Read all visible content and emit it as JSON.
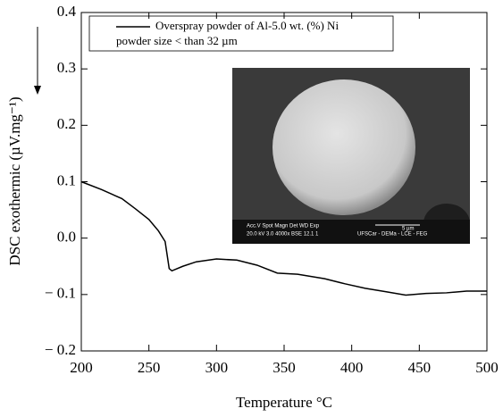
{
  "chart_data": {
    "type": "line",
    "xlabel": "Temperature °C",
    "ylabel": "DSC exothermic (µV.mg⁻¹)",
    "x": [
      200,
      215,
      230,
      240,
      250,
      257,
      262,
      265,
      267,
      275,
      285,
      300,
      315,
      330,
      345,
      360,
      380,
      395,
      410,
      425,
      440,
      455,
      470,
      485,
      500
    ],
    "series": [
      {
        "name": "Overspray powder of Al-5.0 wt. (%) Ni",
        "color": "#000000",
        "values": [
          0.1,
          0.086,
          0.07,
          0.052,
          0.033,
          0.013,
          -0.006,
          -0.054,
          -0.058,
          -0.05,
          -0.042,
          -0.037,
          -0.039,
          -0.048,
          -0.062,
          -0.064,
          -0.072,
          -0.081,
          -0.089,
          -0.095,
          -0.101,
          -0.098,
          -0.097,
          -0.094,
          -0.094
        ]
      }
    ],
    "legend_note": "powder size < than 32 µm",
    "xlim": [
      200,
      500
    ],
    "xticks": [
      200,
      250,
      300,
      350,
      400,
      450,
      500
    ],
    "ylim": [
      -0.2,
      0.4
    ],
    "yticks": [
      {
        "value": -0.2,
        "label": "− 0.2"
      },
      {
        "value": -0.1,
        "label": "− 0.1"
      },
      {
        "value": 0,
        "label": "0.0"
      },
      0.1,
      0.2,
      0.3,
      0.4
    ],
    "inset": {
      "header": "Acc.V  Spot Magn   Det  WD  Exp",
      "settings": "20.0 kV 3.0   4000x   BSE  12.1  1",
      "scale": "5 µm",
      "credit": "UFSCar - DEMa - LCE - FEG"
    }
  }
}
